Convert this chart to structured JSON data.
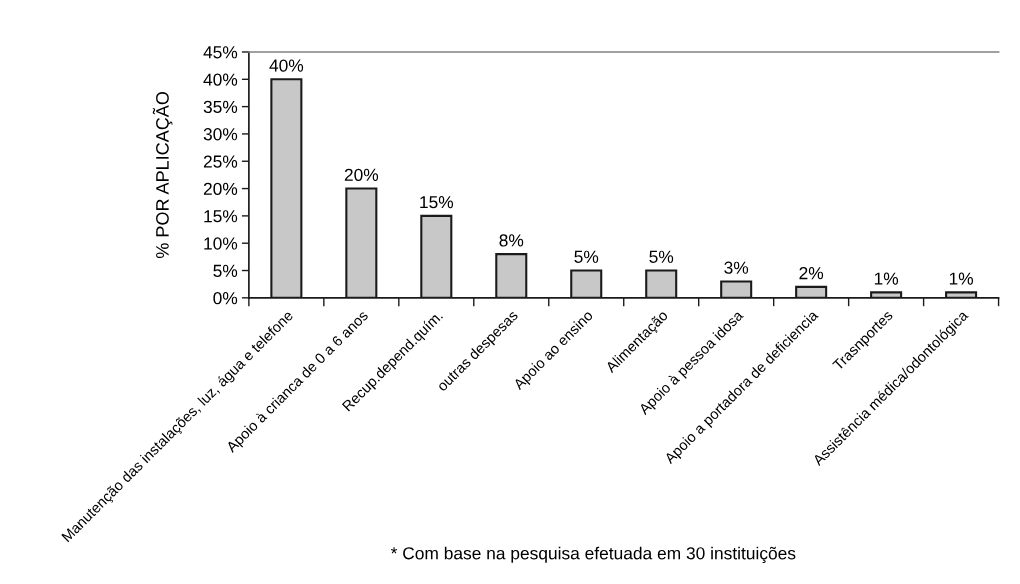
{
  "chart_data": {
    "type": "bar",
    "ylabel": "% POR APLICAÇÃO",
    "categories": [
      "Manutenção das instalações, luz, água e telefone",
      "Apoio à crianca de 0 a 6 anos",
      "Recup.depend.quím.",
      "outras despesas",
      "Apoio ao ensino",
      "Alimentação",
      "Apoio à pessoa idosa",
      "Apoio a portadora de deficiencia",
      "Trasnportes",
      "Assistência médica/odontológica"
    ],
    "values": [
      40,
      20,
      15,
      8,
      5,
      5,
      3,
      2,
      1,
      1
    ],
    "value_labels": [
      "40%",
      "20%",
      "15%",
      "8%",
      "5%",
      "5%",
      "3%",
      "2%",
      "1%",
      "1%"
    ],
    "color": "#c8c8c8",
    "ylim": [
      0,
      45
    ],
    "yticks": [
      {
        "value": 0,
        "label": "0%"
      },
      {
        "value": 5,
        "label": "5%"
      },
      {
        "value": 10,
        "label": "10%"
      },
      {
        "value": 15,
        "label": "15%"
      },
      {
        "value": 20,
        "label": "20%"
      },
      {
        "value": 25,
        "label": "25%"
      },
      {
        "value": 30,
        "label": "30%"
      },
      {
        "value": 35,
        "label": "35%"
      },
      {
        "value": 40,
        "label": "40%"
      },
      {
        "value": 45,
        "label": "45%"
      }
    ],
    "annotations": [
      "* Com base na pesquisa efetuada em 30 instituições"
    ]
  }
}
